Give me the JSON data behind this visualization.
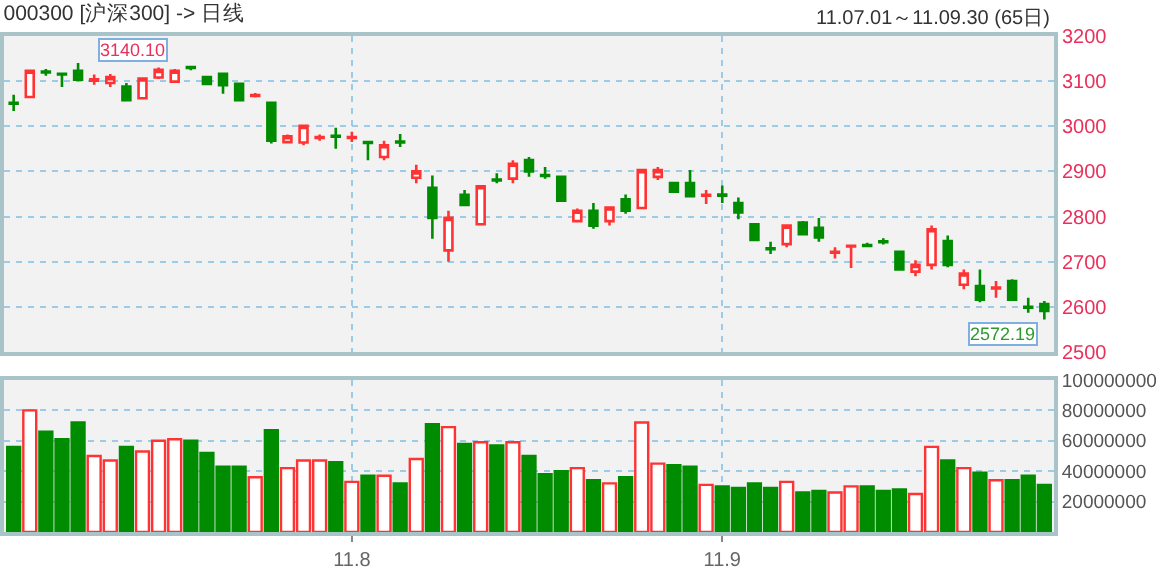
{
  "chart_data": [
    {
      "type": "candlestick",
      "title": "000300 [沪深300] -> 日线",
      "subtitle": "11.07.01～11.09.30 (65日)",
      "categories": [
        null,
        null,
        null,
        null,
        null,
        null,
        null,
        null,
        null,
        null,
        null,
        null,
        null,
        null,
        null,
        null,
        null,
        null,
        null,
        null,
        null,
        "11.8",
        null,
        null,
        null,
        null,
        null,
        null,
        null,
        null,
        null,
        null,
        null,
        null,
        null,
        null,
        null,
        null,
        null,
        null,
        null,
        null,
        null,
        null,
        "11.9",
        null,
        null,
        null,
        null,
        null,
        null,
        null,
        null,
        null,
        null,
        null,
        null,
        null,
        null,
        null,
        null,
        null,
        null,
        null,
        null
      ],
      "ohlc": [
        [
          3052,
          3070,
          3034,
          3050
        ],
        [
          3065,
          3125,
          3063,
          3123
        ],
        [
          3121,
          3127,
          3112,
          3119
        ],
        [
          3116,
          3117,
          3087,
          3115
        ],
        [
          3123,
          3140.1,
          3100,
          3103
        ],
        [
          3101,
          3115,
          3092,
          3104
        ],
        [
          3096,
          3116,
          3087,
          3109
        ],
        [
          3088,
          3096,
          3055,
          3058
        ],
        [
          3062,
          3108,
          3060,
          3106
        ],
        [
          3108,
          3130,
          3105,
          3125
        ],
        [
          3099,
          3127,
          3097,
          3123
        ],
        [
          3131,
          3134,
          3124,
          3129
        ],
        [
          3109,
          3111,
          3092,
          3094
        ],
        [
          3116,
          3118,
          3072,
          3091
        ],
        [
          3094,
          3096,
          3056,
          3058
        ],
        [
          3067,
          3074,
          3064,
          3069
        ],
        [
          3052,
          3054,
          2962,
          2968
        ],
        [
          2965,
          2982,
          2962,
          2978
        ],
        [
          2964,
          3004,
          2958,
          3001
        ],
        [
          2974,
          2982,
          2968,
          2976
        ],
        [
          2979,
          2997,
          2950,
          2977
        ],
        [
          2974,
          2988,
          2965,
          2976
        ],
        [
          2965,
          2966,
          2925,
          2963
        ],
        [
          2932,
          2968,
          2925,
          2958
        ],
        [
          2966,
          2983,
          2954,
          2964
        ],
        [
          2886,
          2915,
          2874,
          2900
        ],
        [
          2864,
          2891,
          2751,
          2797
        ],
        [
          2725,
          2813,
          2700,
          2797
        ],
        [
          2848,
          2859,
          2823,
          2826
        ],
        [
          2783,
          2869,
          2781,
          2867
        ],
        [
          2882,
          2896,
          2874,
          2880
        ],
        [
          2884,
          2925,
          2874,
          2917
        ],
        [
          2925,
          2932,
          2888,
          2900
        ],
        [
          2892,
          2910,
          2884,
          2890
        ],
        [
          2888,
          2890,
          2833,
          2835
        ],
        [
          2790,
          2818,
          2787,
          2813
        ],
        [
          2813,
          2830,
          2773,
          2780
        ],
        [
          2790,
          2822,
          2780,
          2820
        ],
        [
          2838,
          2849,
          2806,
          2813
        ],
        [
          2819,
          2906,
          2817,
          2903
        ],
        [
          2888,
          2910,
          2881,
          2903
        ],
        [
          2874,
          2877,
          2852,
          2855
        ],
        [
          2874,
          2903,
          2843,
          2845
        ],
        [
          2846,
          2859,
          2828,
          2848
        ],
        [
          2849,
          2869,
          2830,
          2846
        ],
        [
          2830,
          2842,
          2794,
          2809
        ],
        [
          2783,
          2785,
          2746,
          2748
        ],
        [
          2730,
          2744,
          2717,
          2728
        ],
        [
          2739,
          2783,
          2732,
          2780
        ],
        [
          2787,
          2790,
          2759,
          2761
        ],
        [
          2775,
          2797,
          2744,
          2754
        ],
        [
          2720,
          2732,
          2707,
          2722
        ],
        [
          2734,
          2736,
          2686,
          2735
        ],
        [
          2737,
          2742,
          2733,
          2735
        ],
        [
          2745,
          2752,
          2738,
          2743
        ],
        [
          2722,
          2724,
          2681,
          2683
        ],
        [
          2678,
          2703,
          2668,
          2693
        ],
        [
          2693,
          2780,
          2683,
          2772
        ],
        [
          2746,
          2758,
          2688,
          2693
        ],
        [
          2649,
          2683,
          2639,
          2674
        ],
        [
          2646,
          2683,
          2610,
          2616
        ],
        [
          2641,
          2657,
          2620,
          2643
        ],
        [
          2657,
          2661,
          2614,
          2616
        ],
        [
          2600,
          2620,
          2587,
          2598
        ],
        [
          2606,
          2613,
          2572.19,
          2591
        ]
      ],
      "colors": [
        "#008c00",
        "#ff3333",
        "#008c00",
        "#008c00",
        "#008c00",
        "#ff3333",
        "#ff3333",
        "#008c00",
        "#ff3333",
        "#ff3333",
        "#ff3333",
        "#008c00",
        "#008c00",
        "#008c00",
        "#008c00",
        "#ff3333",
        "#008c00",
        "#ff3333",
        "#ff3333",
        "#ff3333",
        "#008c00",
        "#ff3333",
        "#008c00",
        "#ff3333",
        "#008c00",
        "#ff3333",
        "#008c00",
        "#ff3333",
        "#008c00",
        "#ff3333",
        "#008c00",
        "#ff3333",
        "#008c00",
        "#008c00",
        "#008c00",
        "#ff3333",
        "#008c00",
        "#ff3333",
        "#008c00",
        "#ff3333",
        "#ff3333",
        "#008c00",
        "#008c00",
        "#ff3333",
        "#008c00",
        "#008c00",
        "#008c00",
        "#008c00",
        "#ff3333",
        "#008c00",
        "#008c00",
        "#ff3333",
        "#ff3333",
        "#008c00",
        "#008c00",
        "#008c00",
        "#ff3333",
        "#ff3333",
        "#008c00",
        "#ff3333",
        "#008c00",
        "#ff3333",
        "#008c00",
        "#008c00",
        "#008c00"
      ],
      "ylim": [
        2500,
        3200
      ],
      "yticks": [
        2500,
        2600,
        2700,
        2800,
        2900,
        3000,
        3100,
        3200
      ],
      "grid": true,
      "tick_labels": "y",
      "annotations": [
        "3140.10",
        "2572.19"
      ]
    },
    {
      "type": "bar",
      "categories": [
        null,
        null,
        null,
        null,
        null,
        null,
        null,
        null,
        null,
        null,
        null,
        null,
        null,
        null,
        null,
        null,
        null,
        null,
        null,
        null,
        null,
        "11.8",
        null,
        null,
        null,
        null,
        null,
        null,
        null,
        null,
        null,
        null,
        null,
        null,
        null,
        null,
        null,
        null,
        null,
        null,
        null,
        null,
        null,
        null,
        "11.9",
        null,
        null,
        null,
        null,
        null,
        null,
        null,
        null,
        null,
        null,
        null,
        null,
        null,
        null,
        null,
        null,
        null,
        null,
        null,
        null
      ],
      "values": [
        56000000,
        80000000,
        66000000,
        61000000,
        72000000,
        50000000,
        47000000,
        56000000,
        53000000,
        60000000,
        61000000,
        60000000,
        52000000,
        43000000,
        43000000,
        36000000,
        67000000,
        42000000,
        47000000,
        47000000,
        46000000,
        33000000,
        37000000,
        37000000,
        32000000,
        48000000,
        71000000,
        69000000,
        58000000,
        59000000,
        57000000,
        59000000,
        50000000,
        38000000,
        40000000,
        42000000,
        34000000,
        32000000,
        36000000,
        72000000,
        45000000,
        44000000,
        43000000,
        31000000,
        30000000,
        29000000,
        32000000,
        29000000,
        33000000,
        26000000,
        27000000,
        26000000,
        30000000,
        30000000,
        27000000,
        28000000,
        25000000,
        56000000,
        47000000,
        42000000,
        39000000,
        34000000,
        34000000,
        37000000,
        31000000
      ],
      "colors": [
        "#008c00",
        "#ff3333",
        "#008c00",
        "#008c00",
        "#008c00",
        "#ff3333",
        "#ff3333",
        "#008c00",
        "#ff3333",
        "#ff3333",
        "#ff3333",
        "#008c00",
        "#008c00",
        "#008c00",
        "#008c00",
        "#ff3333",
        "#008c00",
        "#ff3333",
        "#ff3333",
        "#ff3333",
        "#008c00",
        "#ff3333",
        "#008c00",
        "#ff3333",
        "#008c00",
        "#ff3333",
        "#008c00",
        "#ff3333",
        "#008c00",
        "#ff3333",
        "#008c00",
        "#ff3333",
        "#008c00",
        "#008c00",
        "#008c00",
        "#ff3333",
        "#008c00",
        "#ff3333",
        "#008c00",
        "#ff3333",
        "#ff3333",
        "#008c00",
        "#008c00",
        "#ff3333",
        "#008c00",
        "#008c00",
        "#008c00",
        "#008c00",
        "#ff3333",
        "#008c00",
        "#008c00",
        "#ff3333",
        "#ff3333",
        "#008c00",
        "#008c00",
        "#008c00",
        "#ff3333",
        "#ff3333",
        "#008c00",
        "#ff3333",
        "#008c00",
        "#ff3333",
        "#008c00",
        "#008c00",
        "#008c00"
      ],
      "ylim": [
        0,
        100000000
      ],
      "yticks": [
        20000000,
        40000000,
        60000000,
        80000000,
        100000000
      ],
      "grid": true
    }
  ]
}
